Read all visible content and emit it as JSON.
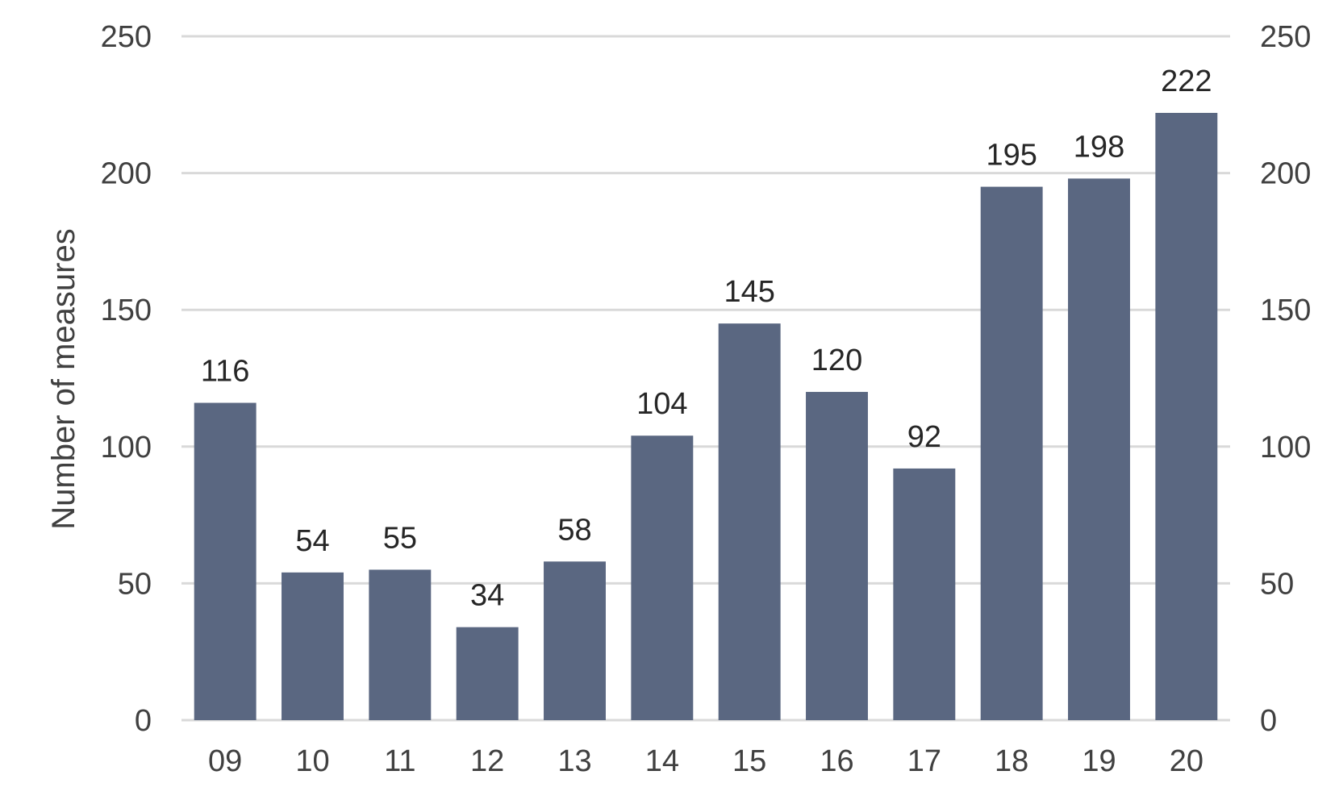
{
  "chart_data": {
    "type": "bar",
    "categories": [
      "09",
      "10",
      "11",
      "12",
      "13",
      "14",
      "15",
      "16",
      "17",
      "18",
      "19",
      "20"
    ],
    "values": [
      116,
      54,
      55,
      34,
      58,
      104,
      145,
      120,
      92,
      195,
      198,
      222
    ],
    "title": "",
    "xlabel": "",
    "ylabel": "Number of measures",
    "ylim": [
      0,
      250
    ],
    "yticks": [
      0,
      50,
      100,
      150,
      200,
      250
    ],
    "secondary_yticks": [
      0,
      50,
      100,
      150,
      200,
      250
    ],
    "grid": true,
    "legend": "none",
    "data_labels": true,
    "bar_color": "#5a6781",
    "grid_color": "#d9d9d9",
    "text_color": "#404040"
  }
}
